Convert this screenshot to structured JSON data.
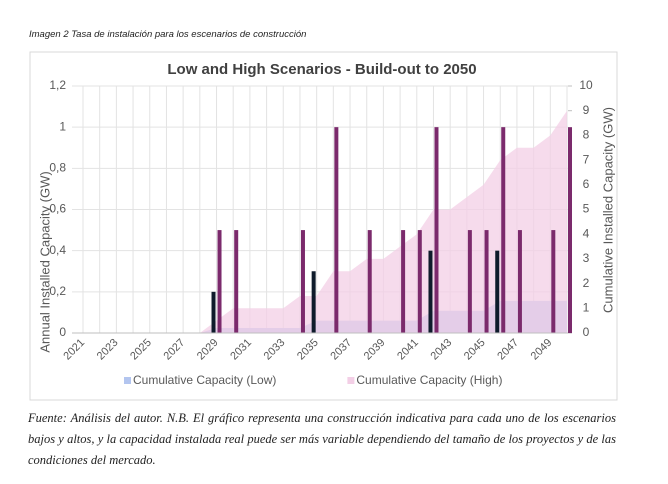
{
  "caption": "Imagen 2 Tasa de instalación para los escenarios de construcción",
  "chart_data": {
    "type": "bar-area",
    "title": "Low and High Scenarios - Build-out to 2050",
    "y_label": "Annual Installed Capacity (GW)",
    "y2_label": "Cumulative Installed Capacity (GW)",
    "categories": [
      "2021",
      null,
      "2023",
      null,
      "2025",
      null,
      "2027",
      null,
      "2029",
      null,
      "2031",
      null,
      "2033",
      null,
      "2035",
      null,
      "2037",
      null,
      "2039",
      null,
      "2041",
      null,
      "2043",
      null,
      "2045",
      null,
      "2047",
      null,
      "2049",
      null
    ],
    "series": [
      {
        "name": "Cumulative Capacity (Low)",
        "kind": "area",
        "axis": "y2",
        "color": "#b3c5ef",
        "values": [
          0,
          0,
          0,
          0,
          0,
          0,
          0,
          0,
          0.2,
          0.2,
          0.2,
          0.2,
          0.2,
          0.2,
          0.5,
          0.5,
          0.5,
          0.5,
          0.5,
          0.5,
          0.5,
          0.9,
          0.9,
          0.9,
          0.9,
          1.3,
          1.3,
          1.3,
          1.3,
          1.3
        ]
      },
      {
        "name": "Cumulative Capacity (High)",
        "kind": "area",
        "axis": "y2",
        "color": "#f3cfe6",
        "values": [
          0,
          0,
          0,
          0,
          0,
          0,
          0,
          0,
          0.5,
          1,
          1,
          1,
          1,
          1.5,
          1.5,
          2.5,
          2.5,
          3,
          3,
          3.5,
          4,
          5,
          5,
          5.5,
          6,
          7,
          7.5,
          7.5,
          8,
          9
        ]
      },
      {
        "kind": "bar",
        "color": "#0e1b2b",
        "values": [
          0,
          0,
          0,
          0,
          0,
          0,
          0,
          0,
          0.2,
          0,
          0,
          0,
          0,
          0,
          0.3,
          0,
          0,
          0,
          0,
          0,
          0,
          0.4,
          0,
          0,
          0,
          0.4,
          0,
          0,
          0,
          0
        ]
      },
      {
        "kind": "bar",
        "color": "#7b2a6c",
        "values": [
          0,
          0,
          0,
          0,
          0,
          0,
          0,
          0,
          0.5,
          0.5,
          0,
          0,
          0,
          0.5,
          0,
          1,
          0,
          0.5,
          0,
          0.5,
          0.5,
          1,
          0,
          0.5,
          0.5,
          1,
          0.5,
          0,
          0.5,
          1
        ]
      }
    ],
    "ylim": [
      0,
      1.2
    ],
    "yticks": [
      0,
      {
        "value": 0.2,
        "label": "0,2"
      },
      {
        "value": 0.4,
        "label": "0,4"
      },
      {
        "value": 0.6,
        "label": "0,6"
      },
      {
        "value": 0.8,
        "label": "0,8"
      },
      1,
      {
        "value": 1.2,
        "label": "1,2"
      }
    ],
    "y2lim": [
      0,
      10
    ],
    "y2ticks": [
      0,
      1,
      2,
      3,
      4,
      5,
      6,
      7,
      8,
      9,
      10
    ],
    "grid": true,
    "legend": "bottom"
  },
  "source": "Fuente: Análisis del autor. N.B. El gráfico representa una construcción indicativa para cada uno de los escenarios bajos y altos, y la capacidad instalada real puede ser más variable dependiendo del tamaño de los proyectos y de las condiciones del mercado."
}
